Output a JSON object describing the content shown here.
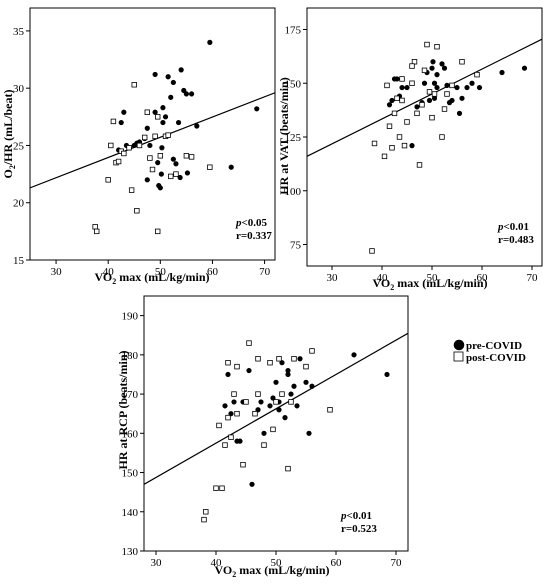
{
  "legend": {
    "items": [
      {
        "label": "pre-COVID",
        "marker": "filled-circle"
      },
      {
        "label": "post-COVID",
        "marker": "open-square"
      }
    ]
  },
  "chart_data": [
    {
      "type": "scatter",
      "xlabel": "VO2 max (mL/kg/min)",
      "ylabel": "O2/HR (mL/beat)",
      "xlim": [
        25,
        72
      ],
      "ylim": [
        15,
        37
      ],
      "xticks": [
        30,
        40,
        50,
        60,
        70
      ],
      "yticks": [
        15,
        20,
        25,
        30,
        35
      ],
      "stats": {
        "p": "p<0.05",
        "r": "r=0.337"
      },
      "regression": {
        "x": [
          25,
          72
        ],
        "y": [
          21.3,
          29.6
        ]
      },
      "series": [
        {
          "name": "pre-COVID",
          "points": [
            [
              42,
              24.6
            ],
            [
              42.5,
              27
            ],
            [
              43,
              27.9
            ],
            [
              43.5,
              25
            ],
            [
              44,
              24.8
            ],
            [
              45,
              25
            ],
            [
              45.5,
              25.2
            ],
            [
              46,
              25.3
            ],
            [
              47,
              25.6
            ],
            [
              47.5,
              22
            ],
            [
              48,
              25
            ],
            [
              49,
              31.2
            ],
            [
              49.5,
              23.5
            ],
            [
              49.7,
              21.5
            ],
            [
              50,
              21.3
            ],
            [
              50.2,
              22.5
            ],
            [
              50.3,
              24.8
            ],
            [
              50.5,
              28.3
            ],
            [
              51,
              27.5
            ],
            [
              51.5,
              31
            ],
            [
              52,
              29.2
            ],
            [
              52.5,
              30.5
            ],
            [
              53,
              23.4
            ],
            [
              53.5,
              27
            ],
            [
              53.8,
              22.2
            ],
            [
              54,
              31.6
            ],
            [
              54.5,
              29.8
            ],
            [
              55,
              29.5
            ],
            [
              55.2,
              22.6
            ],
            [
              56,
              29.5
            ],
            [
              57,
              26.7
            ],
            [
              59.5,
              34
            ],
            [
              63.6,
              23.1
            ],
            [
              68.5,
              28.2
            ],
            [
              49,
              27.9
            ],
            [
              50.5,
              27
            ],
            [
              52.5,
              23.8
            ],
            [
              47.5,
              26.5
            ]
          ]
        },
        {
          "name": "post-COVID",
          "points": [
            [
              37.5,
              17.9
            ],
            [
              37.8,
              17.5
            ],
            [
              40,
              22
            ],
            [
              40.5,
              25
            ],
            [
              41,
              27.1
            ],
            [
              41.5,
              23.5
            ],
            [
              42,
              23.6
            ],
            [
              42.5,
              24.5
            ],
            [
              43,
              24.3
            ],
            [
              44,
              24.8
            ],
            [
              44.5,
              21.1
            ],
            [
              45,
              30.3
            ],
            [
              45.5,
              19.3
            ],
            [
              46,
              25
            ],
            [
              47,
              25.7
            ],
            [
              47.5,
              27.9
            ],
            [
              48,
              23.9
            ],
            [
              48.5,
              22.9
            ],
            [
              49,
              25.8
            ],
            [
              49.5,
              27.5
            ],
            [
              49.5,
              17.5
            ],
            [
              50,
              24.1
            ],
            [
              51,
              25.8
            ],
            [
              51.5,
              25.9
            ],
            [
              52,
              22.3
            ],
            [
              53,
              22.5
            ],
            [
              55,
              24.1
            ],
            [
              56,
              24
            ],
            [
              59.5,
              23.1
            ]
          ]
        }
      ]
    },
    {
      "type": "scatter",
      "xlabel": "VO2 max (mL/kg/min)",
      "ylabel": "HR at VAT (beats/min)",
      "xlim": [
        25,
        72
      ],
      "ylim": [
        65,
        185
      ],
      "xticks": [
        30,
        40,
        50,
        60,
        70
      ],
      "yticks": [
        75,
        100,
        125,
        150,
        175
      ],
      "stats": {
        "p": "p<0.01",
        "r": "r=0.483"
      },
      "regression": {
        "x": [
          25,
          72
        ],
        "y": [
          116,
          170.5
        ]
      },
      "series": [
        {
          "name": "pre-COVID",
          "points": [
            [
              41.5,
              140
            ],
            [
              42,
              142
            ],
            [
              42.5,
              152
            ],
            [
              43,
              152
            ],
            [
              43.5,
              144
            ],
            [
              44,
              148
            ],
            [
              45,
              148
            ],
            [
              46,
              121
            ],
            [
              47,
              139
            ],
            [
              48,
              141
            ],
            [
              48.5,
              150
            ],
            [
              49,
              155
            ],
            [
              49.5,
              142
            ],
            [
              50,
              157
            ],
            [
              50.2,
              160
            ],
            [
              50.5,
              143
            ],
            [
              51,
              148
            ],
            [
              52,
              159
            ],
            [
              52.5,
              157
            ],
            [
              53,
              149
            ],
            [
              53.5,
              141
            ],
            [
              54,
              142
            ],
            [
              55,
              148
            ],
            [
              55.5,
              136
            ],
            [
              56,
              143
            ],
            [
              57,
              148
            ],
            [
              58,
              150
            ],
            [
              59.5,
              148
            ],
            [
              64,
              155
            ],
            [
              68.5,
              157
            ],
            [
              50.5,
              150
            ],
            [
              51,
              154
            ]
          ]
        },
        {
          "name": "post-COVID",
          "points": [
            [
              38,
              72
            ],
            [
              38.5,
              122
            ],
            [
              40.5,
              116
            ],
            [
              41,
              149
            ],
            [
              41.5,
              130
            ],
            [
              42,
              120
            ],
            [
              42.5,
              136
            ],
            [
              43,
              143
            ],
            [
              43.5,
              125
            ],
            [
              44,
              152
            ],
            [
              44.5,
              121
            ],
            [
              45,
              132
            ],
            [
              46,
              150
            ],
            [
              46.5,
              160
            ],
            [
              47,
              136
            ],
            [
              47.5,
              112
            ],
            [
              48,
              140
            ],
            [
              48.5,
              156
            ],
            [
              49,
              168
            ],
            [
              49.5,
              146
            ],
            [
              50,
              134
            ],
            [
              50.5,
              145
            ],
            [
              51,
              167
            ],
            [
              52,
              125
            ],
            [
              52.5,
              138
            ],
            [
              53,
              145
            ],
            [
              54,
              149
            ],
            [
              56,
              160
            ],
            [
              59,
              154
            ],
            [
              46,
              158
            ],
            [
              44,
              142
            ]
          ]
        }
      ]
    },
    {
      "type": "scatter",
      "xlabel": "VO2 max (mL/kg/min)",
      "ylabel": "HR at RCP (beats/min)",
      "xlim": [
        28,
        72
      ],
      "ylim": [
        130,
        195
      ],
      "xticks": [
        30,
        40,
        50,
        60,
        70
      ],
      "yticks": [
        130,
        140,
        150,
        160,
        170,
        180,
        190
      ],
      "stats": {
        "p": "p<0.01",
        "r": "r=0.523"
      },
      "regression": {
        "x": [
          28,
          72
        ],
        "y": [
          147,
          185.5
        ]
      },
      "series": [
        {
          "name": "pre-COVID",
          "points": [
            [
              41.5,
              167
            ],
            [
              42,
              175
            ],
            [
              42.5,
              165
            ],
            [
              43,
              168
            ],
            [
              43.5,
              158
            ],
            [
              44,
              158
            ],
            [
              44.5,
              168
            ],
            [
              45.5,
              176
            ],
            [
              46,
              147
            ],
            [
              47,
              166
            ],
            [
              47.5,
              168
            ],
            [
              48,
              160
            ],
            [
              49,
              167
            ],
            [
              49.5,
              169
            ],
            [
              50,
              173
            ],
            [
              50.5,
              168
            ],
            [
              51,
              178
            ],
            [
              51.5,
              164
            ],
            [
              52,
              175
            ],
            [
              52.5,
              170
            ],
            [
              53,
              172
            ],
            [
              53.5,
              167
            ],
            [
              54,
              179
            ],
            [
              55,
              173
            ],
            [
              55.5,
              160
            ],
            [
              56,
              172
            ],
            [
              59,
              166
            ],
            [
              63,
              180
            ],
            [
              68.5,
              175
            ],
            [
              50.5,
              166
            ],
            [
              52,
              176
            ]
          ]
        },
        {
          "name": "post-COVID",
          "points": [
            [
              38,
              138
            ],
            [
              38.3,
              140
            ],
            [
              40,
              146
            ],
            [
              40.5,
              162
            ],
            [
              41,
              146
            ],
            [
              41.5,
              157
            ],
            [
              42,
              164
            ],
            [
              42.5,
              159
            ],
            [
              43,
              170
            ],
            [
              43.5,
              165
            ],
            [
              44.5,
              152
            ],
            [
              45,
              168
            ],
            [
              45.5,
              183
            ],
            [
              46.5,
              165
            ],
            [
              47,
              179
            ],
            [
              48,
              157
            ],
            [
              49,
              178
            ],
            [
              49.5,
              161
            ],
            [
              50,
              168
            ],
            [
              50.5,
              179
            ],
            [
              51,
              170
            ],
            [
              52,
              151
            ],
            [
              52.5,
              168
            ],
            [
              53,
              179
            ],
            [
              55,
              177
            ],
            [
              56,
              181
            ],
            [
              59,
              166
            ],
            [
              42,
              178
            ],
            [
              47,
              170
            ],
            [
              43.5,
              177
            ]
          ]
        }
      ]
    }
  ]
}
